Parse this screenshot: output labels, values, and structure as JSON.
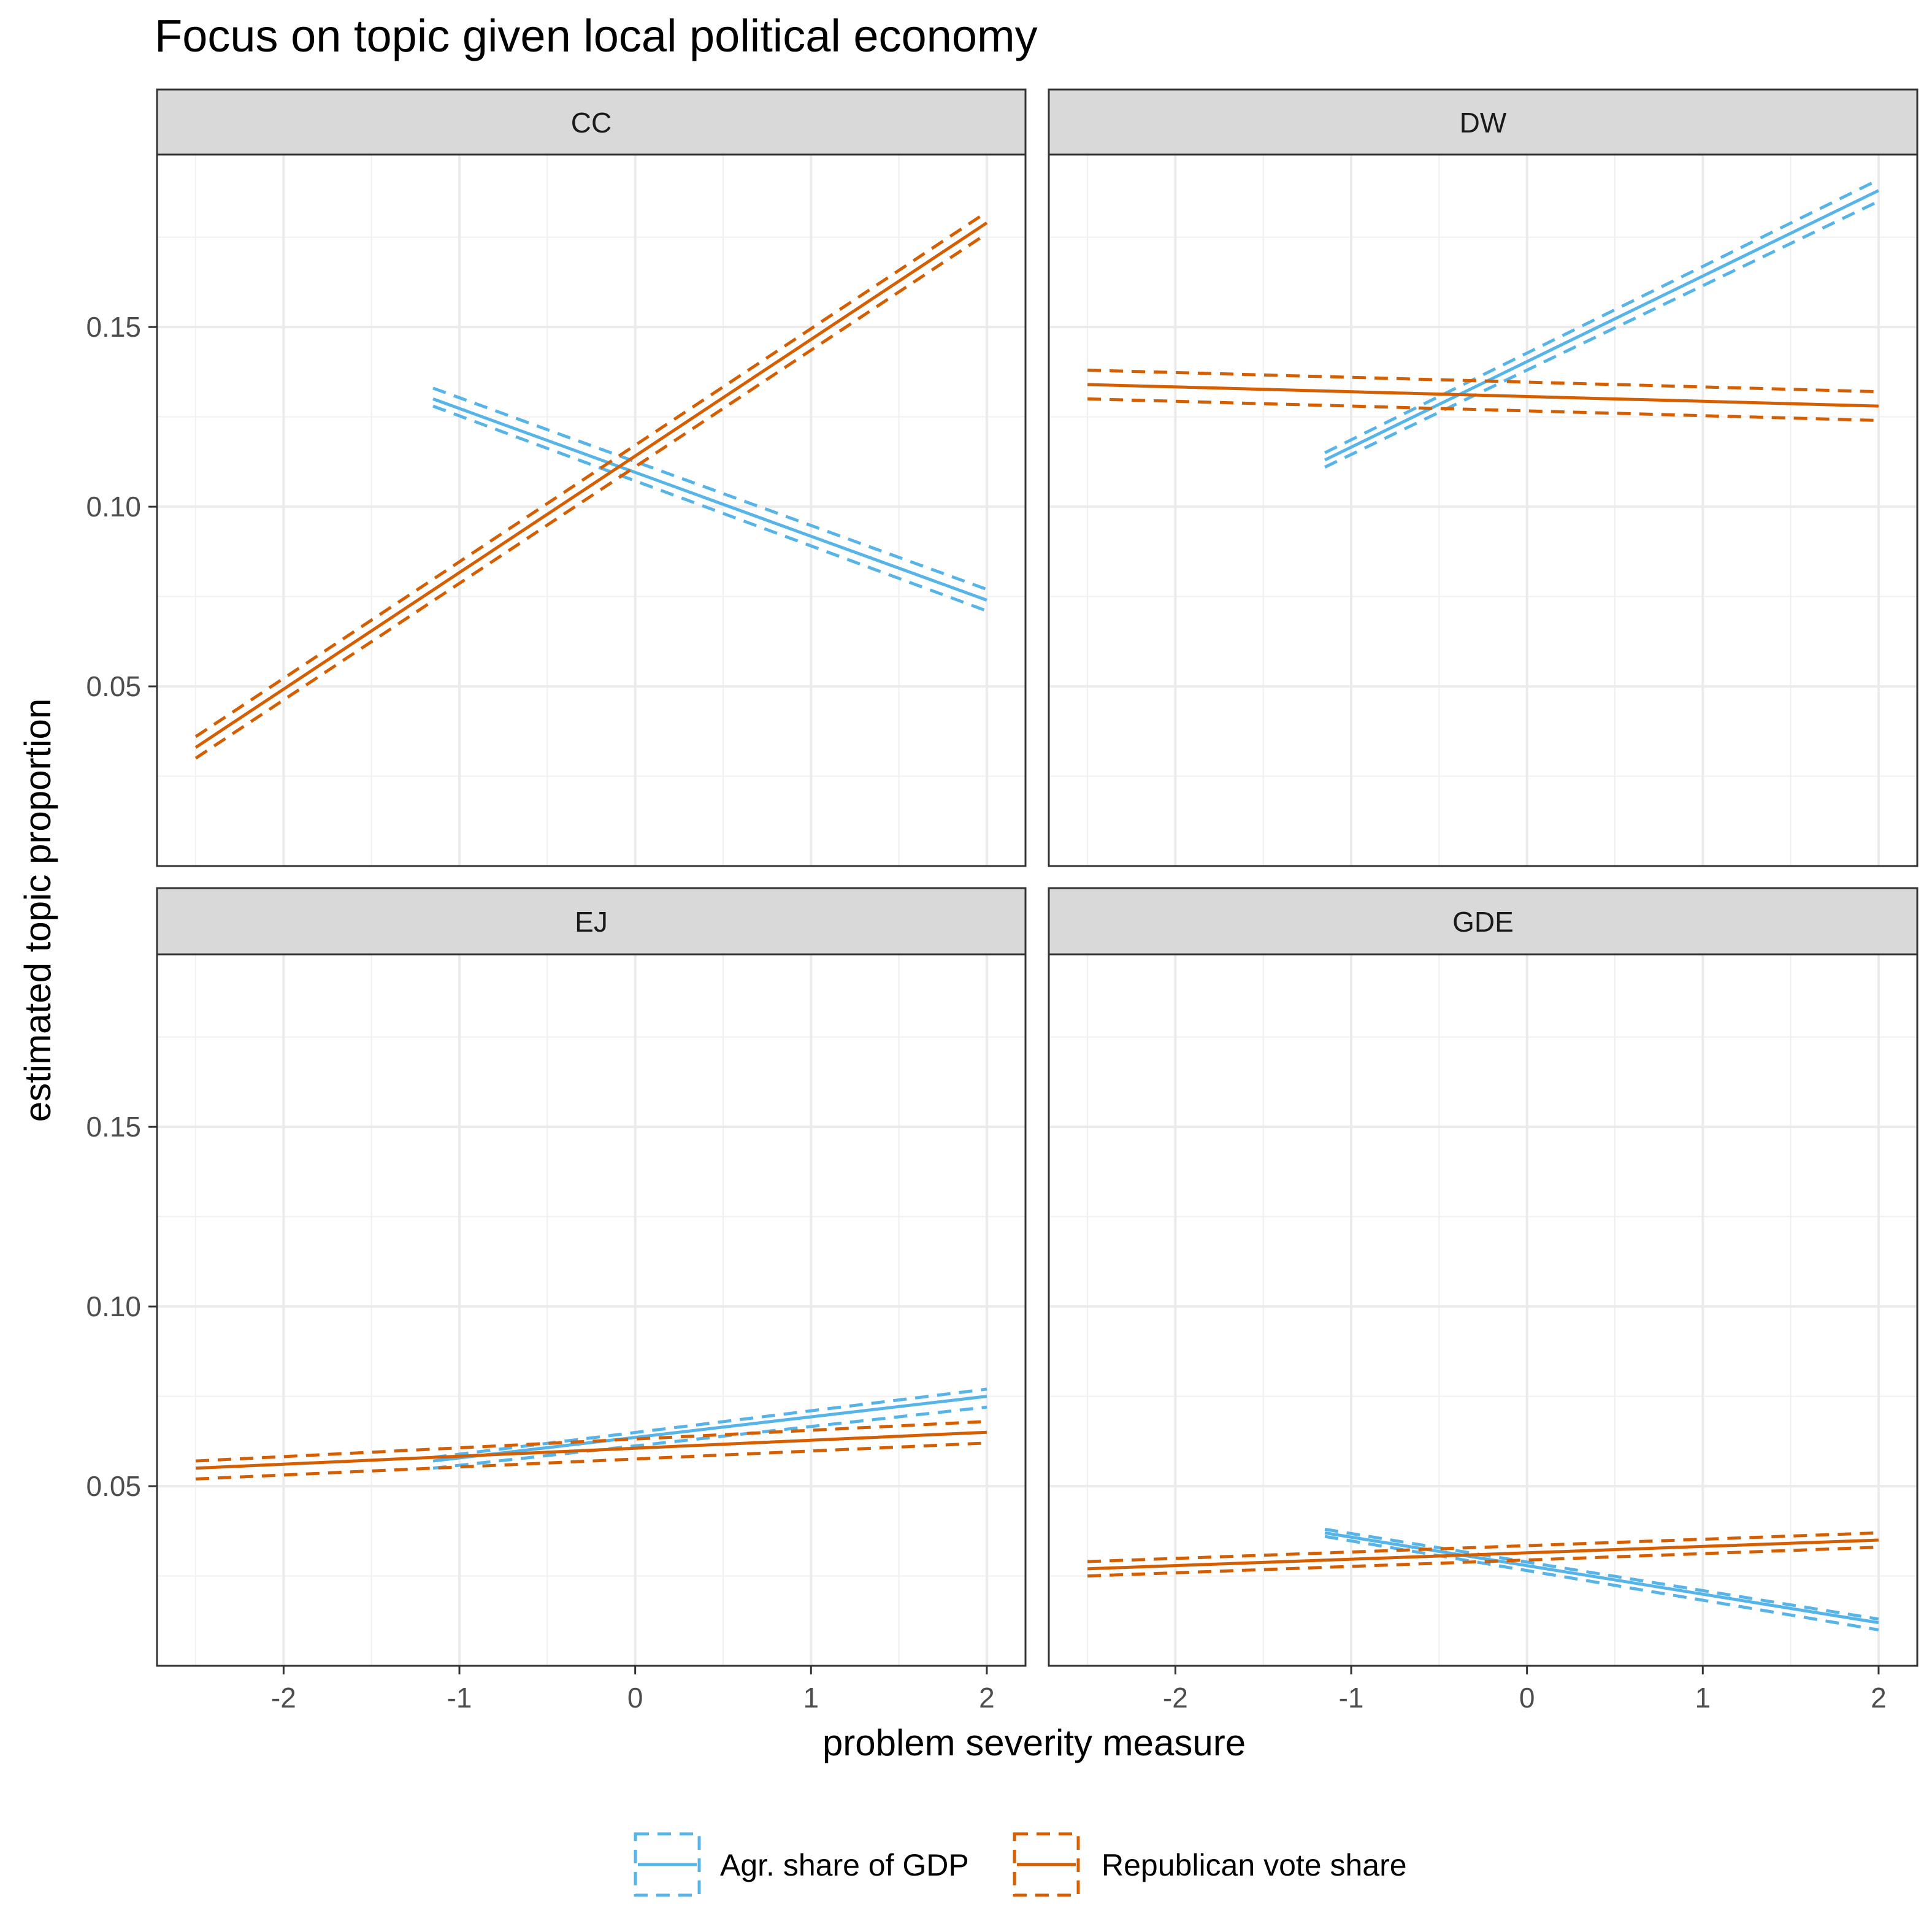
{
  "chart_data": {
    "type": "line",
    "title": "Focus on topic given local political economy",
    "xlabel": "problem severity measure",
    "ylabel": "estimated topic proportion",
    "xlim": [
      -2.72,
      2.22
    ],
    "ylim": [
      0.0,
      0.198
    ],
    "x_ticks": [
      -2,
      -1,
      0,
      1,
      2
    ],
    "x_tick_labels": [
      "-2",
      "-1",
      "0",
      "1",
      "2"
    ],
    "y_ticks": [
      0.05,
      0.1,
      0.15
    ],
    "y_tick_labels": [
      "0.05",
      "0.10",
      "0.15"
    ],
    "grid": true,
    "legend_position": "bottom",
    "legend": [
      {
        "key": "agr",
        "label": "Agr. share of GDP",
        "color": "#56B4E9"
      },
      {
        "key": "rep",
        "label": "Republican vote share",
        "color": "#D55E00"
      }
    ],
    "panels": [
      {
        "name": "CC",
        "series": [
          {
            "key": "agr",
            "x": [
              -1.15,
              2.0
            ],
            "y": [
              0.13,
              0.074
            ],
            "upper": [
              0.133,
              0.077
            ],
            "lower": [
              0.128,
              0.071
            ]
          },
          {
            "key": "rep",
            "x": [
              -2.5,
              2.0
            ],
            "y": [
              0.033,
              0.179
            ],
            "upper": [
              0.036,
              0.182
            ],
            "lower": [
              0.03,
              0.176
            ]
          }
        ]
      },
      {
        "name": "DW",
        "series": [
          {
            "key": "agr",
            "x": [
              -1.15,
              2.0
            ],
            "y": [
              0.113,
              0.188
            ],
            "upper": [
              0.115,
              0.191
            ],
            "lower": [
              0.111,
              0.185
            ]
          },
          {
            "key": "rep",
            "x": [
              -2.5,
              2.0
            ],
            "y": [
              0.134,
              0.128
            ],
            "upper": [
              0.138,
              0.132
            ],
            "lower": [
              0.13,
              0.124
            ]
          }
        ]
      },
      {
        "name": "EJ",
        "series": [
          {
            "key": "agr",
            "x": [
              -1.15,
              2.0
            ],
            "y": [
              0.057,
              0.075
            ],
            "upper": [
              0.058,
              0.077
            ],
            "lower": [
              0.055,
              0.072
            ]
          },
          {
            "key": "rep",
            "x": [
              -2.5,
              2.0
            ],
            "y": [
              0.055,
              0.065
            ],
            "upper": [
              0.057,
              0.068
            ],
            "lower": [
              0.052,
              0.062
            ]
          }
        ]
      },
      {
        "name": "GDE",
        "series": [
          {
            "key": "agr",
            "x": [
              -1.15,
              2.0
            ],
            "y": [
              0.037,
              0.012
            ],
            "upper": [
              0.038,
              0.013
            ],
            "lower": [
              0.036,
              0.01
            ]
          },
          {
            "key": "rep",
            "x": [
              -2.5,
              2.0
            ],
            "y": [
              0.027,
              0.035
            ],
            "upper": [
              0.029,
              0.037
            ],
            "lower": [
              0.025,
              0.033
            ]
          }
        ]
      }
    ]
  }
}
